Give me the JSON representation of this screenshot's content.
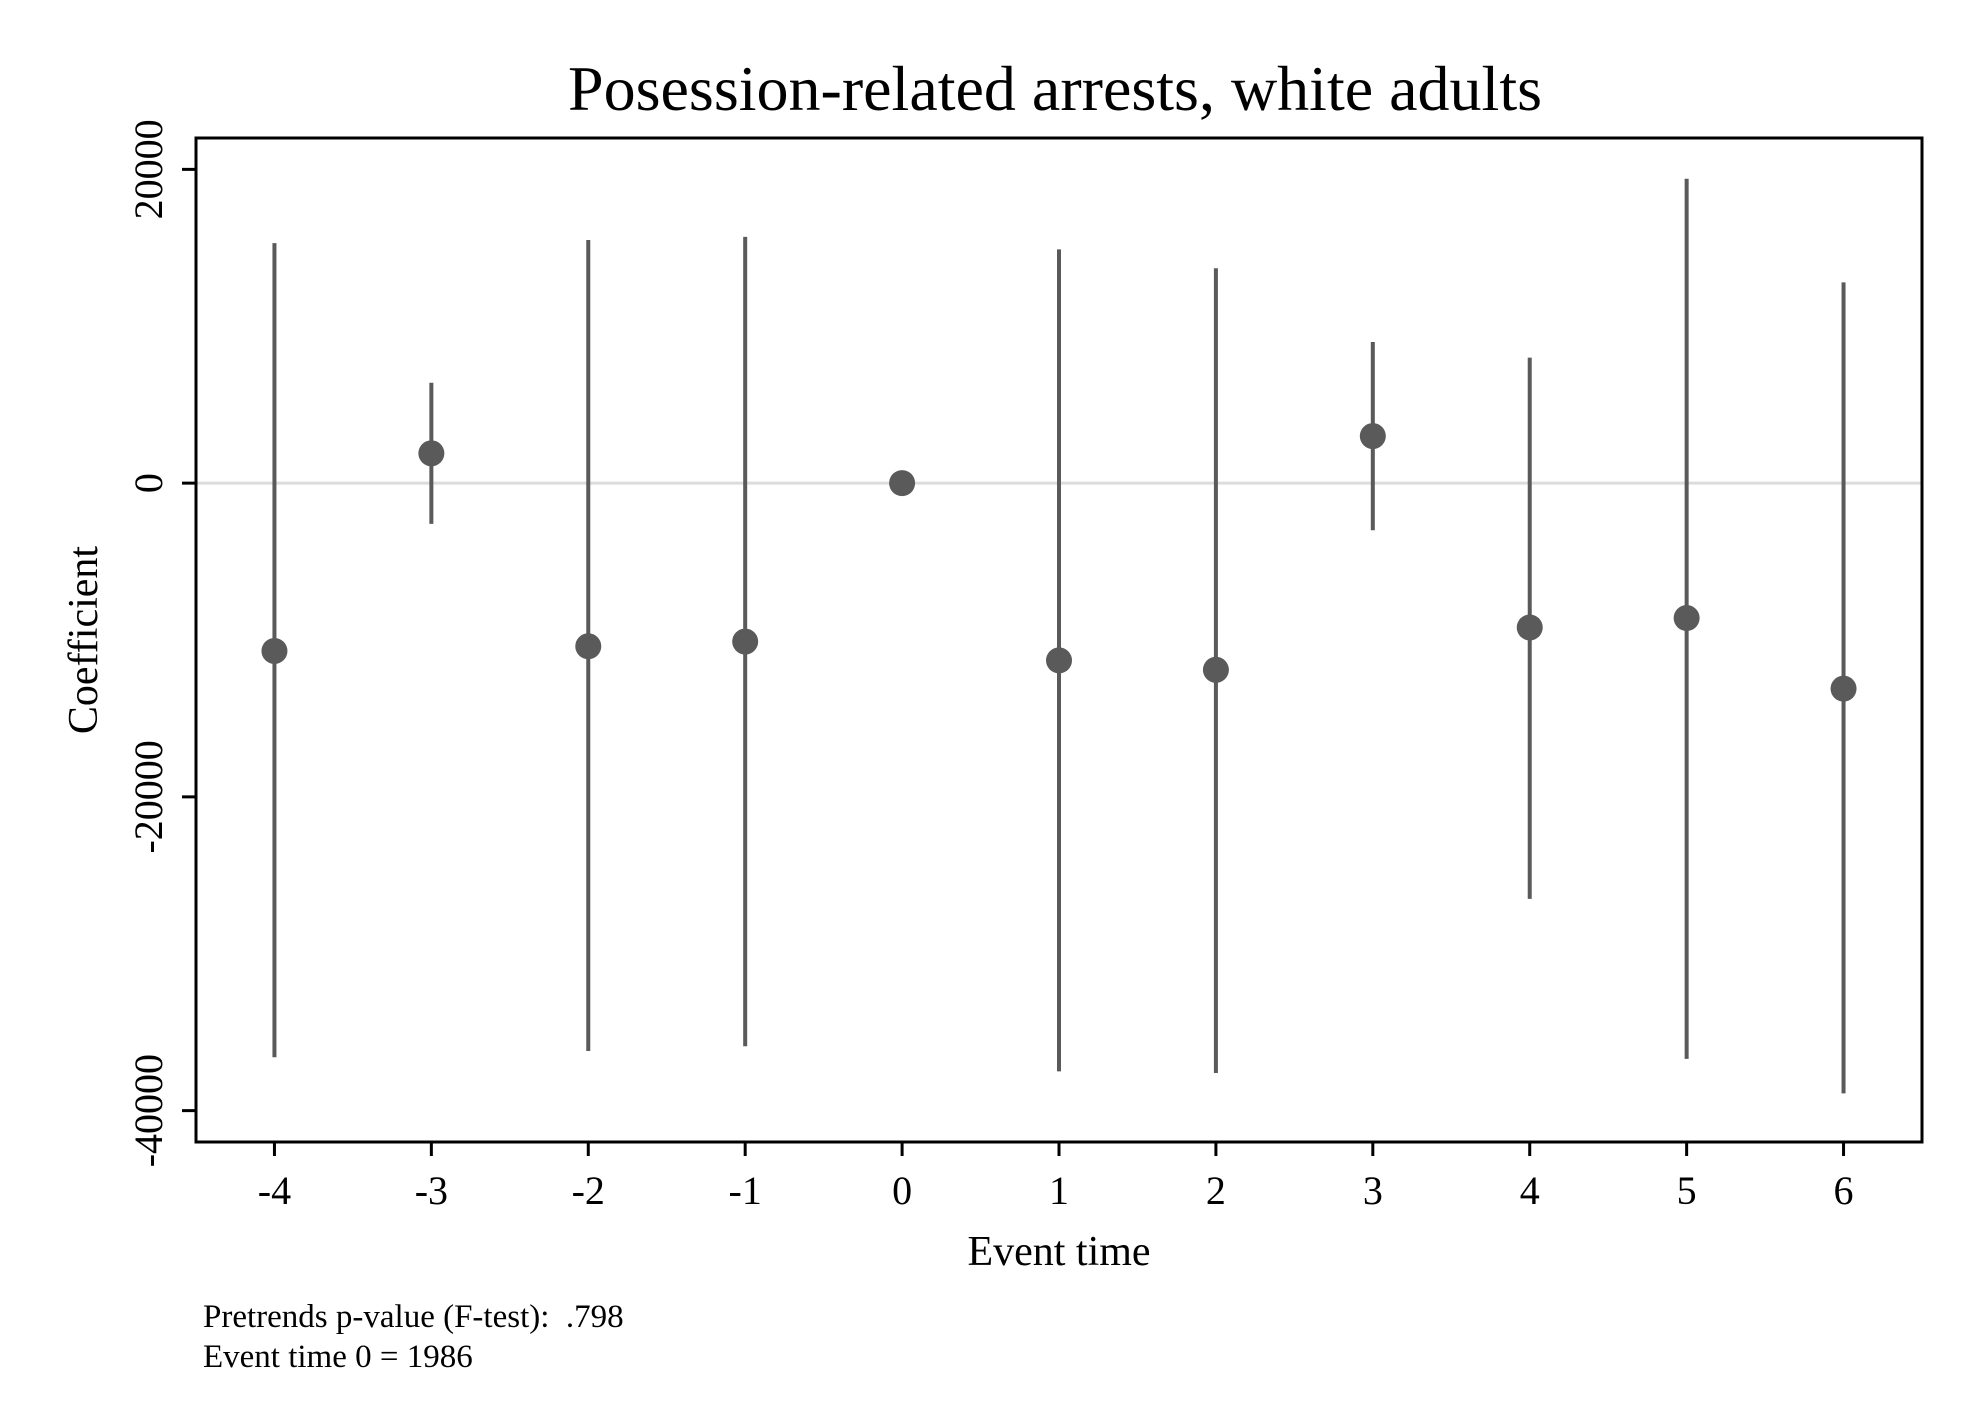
{
  "chart_data": {
    "type": "scatter",
    "subtype": "coefficient plot with confidence intervals",
    "title": "Posession-related arrests, white adults",
    "xlabel": "Event time",
    "ylabel": "Coefficient",
    "xlim": [
      -4.5,
      6.5
    ],
    "ylim": [
      -42000,
      22000
    ],
    "x_ticks": [
      -4,
      -3,
      -2,
      -1,
      0,
      1,
      2,
      3,
      4,
      5,
      6
    ],
    "x_tick_labels": [
      "-4",
      "-3",
      "-2",
      "-1",
      "0",
      "1",
      "2",
      "3",
      "4",
      "5",
      "6"
    ],
    "y_ticks": [
      -40000,
      -20000,
      0,
      20000
    ],
    "y_tick_labels": [
      "-40000",
      "-20000",
      "0",
      "20000"
    ],
    "reference_line_y": 0,
    "grid": false,
    "legend": "none",
    "series": [
      {
        "x": [
          -4,
          -3,
          -2,
          -1,
          0,
          1,
          2,
          3,
          4,
          5,
          6
        ],
        "values": [
          -10700,
          1900,
          -10400,
          -10100,
          0,
          -11300,
          -11900,
          3000,
          -9200,
          -8600,
          -13100
        ],
        "ci_low": [
          -36600,
          -2600,
          -36200,
          -35900,
          0,
          -37500,
          -37600,
          -3000,
          -26500,
          -36700,
          -38900
        ],
        "ci_high": [
          15300,
          6400,
          15500,
          15700,
          0,
          14900,
          13700,
          9000,
          8000,
          19400,
          12800
        ]
      }
    ],
    "notes": [
      "Pretrends p-value (F-test):  .798",
      "Event time 0 = 1986"
    ]
  },
  "colors": {
    "marker": "#5a5a5a",
    "ci_line": "#5a5a5a",
    "zero_line": "#dcdcdc",
    "axis": "#000000",
    "background": "#ffffff"
  }
}
